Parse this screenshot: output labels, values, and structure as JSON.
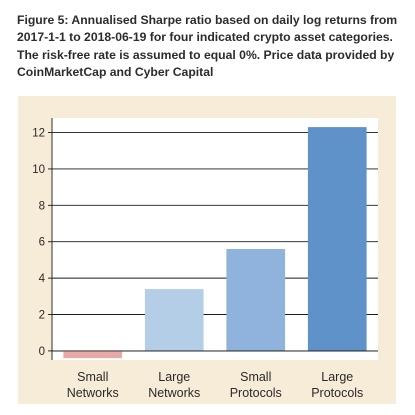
{
  "caption": {
    "prefix": "Figure 5:",
    "text": "Annualised Sharpe ratio based on daily log returns from 2017-1-1 to 2018-06-19 for four indicated crypto asset categories. The risk-free rate is assumed to equal 0%. Price data provided by CoinMarketCap and Cyber Capital"
  },
  "colors": {
    "background": "#f7ecd7",
    "plot_background": "#ffffff",
    "negative_bar": "#e8a9a9",
    "bar_shades": [
      "#e8a9a9",
      "#b5cee8",
      "#8fb3dc",
      "#5f92c9"
    ]
  },
  "chart_data": {
    "type": "bar",
    "title": "",
    "xlabel": "",
    "ylabel": "",
    "categories": [
      [
        "Small",
        "Networks"
      ],
      [
        "Large",
        "Networks"
      ],
      [
        "Small",
        "Protocols"
      ],
      [
        "Large",
        "Protocols"
      ]
    ],
    "values": [
      -0.4,
      3.4,
      5.6,
      12.3
    ],
    "ylim": [
      -0.5,
      12.8
    ],
    "yticks": [
      0,
      2,
      4,
      6,
      8,
      10,
      12
    ],
    "ytick_labels": [
      "0",
      "2",
      "4",
      "6",
      "8",
      "10",
      "12"
    ],
    "grid": true,
    "legend": "none"
  }
}
